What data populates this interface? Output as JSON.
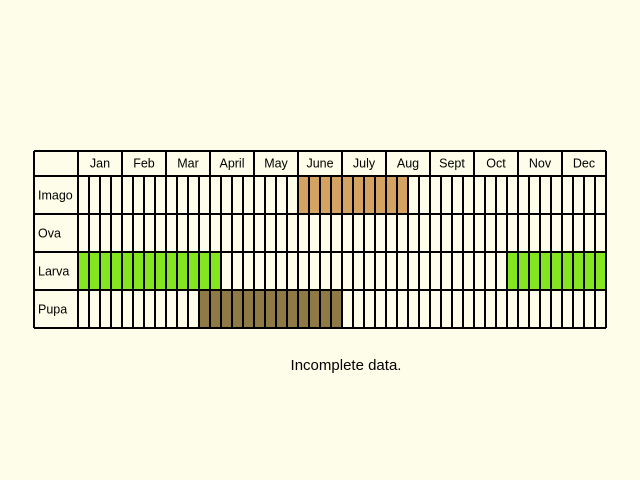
{
  "months": [
    "Jan",
    "Feb",
    "Mar",
    "April",
    "May",
    "June",
    "July",
    "Aug",
    "Sept",
    "Oct",
    "Nov",
    "Dec"
  ],
  "stages": [
    {
      "name": "Imago",
      "color": "#d4a261",
      "spans": [
        [
          5.0,
          7.5
        ]
      ]
    },
    {
      "name": "Ova",
      "color": "#d4a261",
      "spans": []
    },
    {
      "name": "Larva",
      "color": "#84e61f",
      "spans": [
        [
          0.0,
          3.25
        ],
        [
          9.75,
          12.0
        ]
      ]
    },
    {
      "name": "Pupa",
      "color": "#8f7a45",
      "spans": [
        [
          2.75,
          6.0
        ]
      ]
    }
  ],
  "note": "Incomplete data."
}
